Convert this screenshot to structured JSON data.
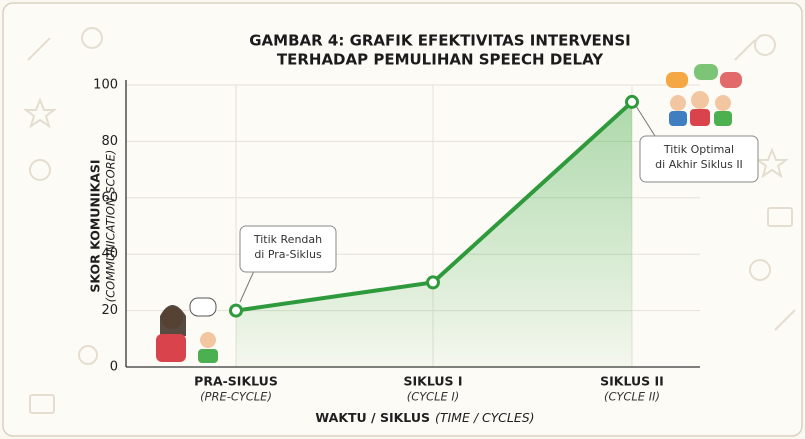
{
  "chart_data": {
    "type": "line",
    "title": [
      "GAMBAR 4: GRAFIK EFEKTIVITAS INTERVENSI",
      "TERHADAP PEMULIHAN SPEECH DELAY"
    ],
    "categories": [
      "PRA-SIKLUS",
      "SIKLUS I",
      "SIKLUS II"
    ],
    "category_subtitles": [
      "(PRE-CYCLE)",
      "(CYCLE I)",
      "(CYCLE II)"
    ],
    "values": [
      20,
      30,
      94
    ],
    "color": "#2f9a3c",
    "area": true,
    "ylim": [
      0,
      100
    ],
    "yticks": [
      0,
      20,
      40,
      60,
      80,
      100
    ],
    "grid": true,
    "y_label": [
      "SKOR KOMUNIKASI",
      "(COMMUNICATION SCORE)"
    ],
    "x_label": [
      "WAKTU / SIKLUS",
      "(TIME / CYCLES)"
    ],
    "annotations": [
      {
        "lines": [
          "Titik Rendah",
          "di Pra-Siklus"
        ]
      },
      {
        "lines": [
          "Titik Optimal",
          "di Akhir Siklus II"
        ]
      }
    ]
  }
}
